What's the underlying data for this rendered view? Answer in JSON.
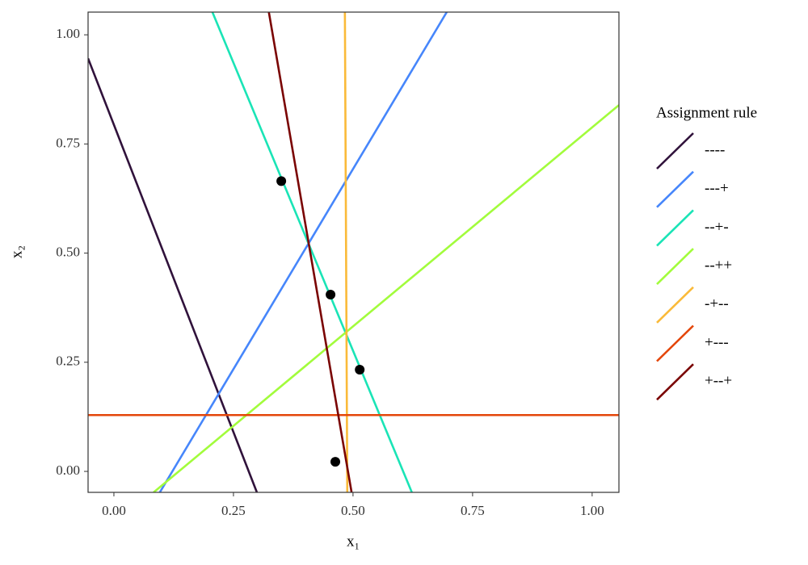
{
  "chart_data": {
    "type": "line",
    "xlabel": "x₁",
    "ylabel": "x₂",
    "xlim": [
      -0.054,
      1.056
    ],
    "ylim": [
      -0.048,
      1.052
    ],
    "xticks": [
      {
        "value": 0,
        "label": "0.00"
      },
      {
        "value": 0.25,
        "label": "0.25"
      },
      {
        "value": 0.5,
        "label": "0.50"
      },
      {
        "value": 0.75,
        "label": "0.75"
      },
      {
        "value": 1,
        "label": "1.00"
      }
    ],
    "yticks": [
      {
        "value": 0,
        "label": "0.00"
      },
      {
        "value": 0.25,
        "label": "0.25"
      },
      {
        "value": 0.5,
        "label": "0.50"
      },
      {
        "value": 0.75,
        "label": "0.75"
      },
      {
        "value": 1,
        "label": "1.00"
      }
    ],
    "legend_title": "Assignment rule",
    "legend": "right",
    "series": [
      {
        "name": "----",
        "color": "#30123B",
        "x": [
          -0.054,
          0.299
        ],
        "values": [
          0.946,
          -0.048
        ]
      },
      {
        "name": "---+",
        "color": "#4686FB",
        "x": [
          0.096,
          0.696
        ],
        "values": [
          -0.048,
          1.052
        ]
      },
      {
        "name": "--+-",
        "color": "#1AE4B6",
        "x": [
          0.206,
          0.623
        ],
        "values": [
          1.052,
          -0.048
        ]
      },
      {
        "name": "--++",
        "color": "#A2FC3C",
        "x": [
          0.083,
          1.056
        ],
        "values": [
          -0.048,
          0.839
        ]
      },
      {
        "name": "-+--",
        "color": "#FABA39",
        "x": [
          0.483,
          0.488
        ],
        "values": [
          1.052,
          -0.048
        ]
      },
      {
        "name": "+---",
        "color": "#E4460A",
        "x": [
          -0.054,
          1.056
        ],
        "values": [
          0.129,
          0.129
        ]
      },
      {
        "name": "+--+",
        "color": "#7A0403",
        "x": [
          0.324,
          0.497
        ],
        "values": [
          1.052,
          -0.048
        ]
      }
    ],
    "points": {
      "color": "#000000",
      "x": [
        0.35,
        0.453,
        0.514,
        0.463
      ],
      "y": [
        0.665,
        0.405,
        0.233,
        0.022
      ]
    }
  }
}
